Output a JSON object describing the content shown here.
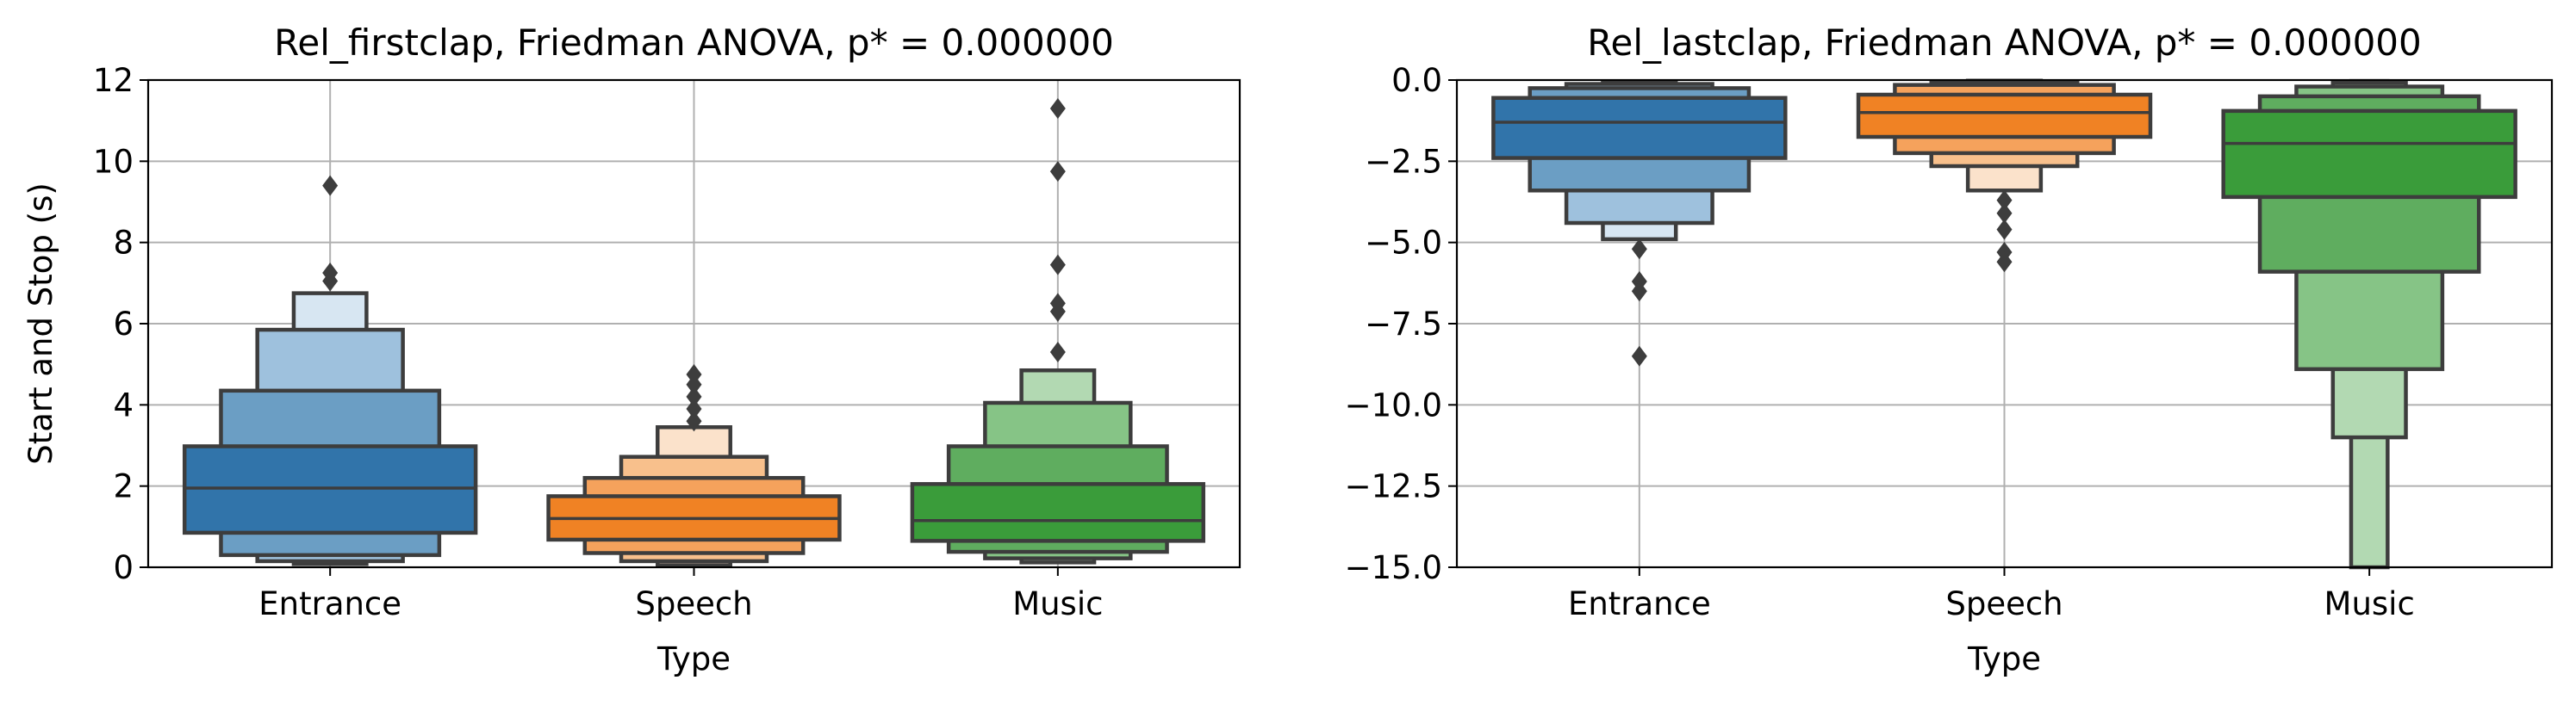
{
  "chart_data": [
    {
      "type": "boxen",
      "title": "Rel_firstclap, Friedman ANOVA, p* = 0.000000",
      "xlabel": "Type",
      "ylabel": "Start and Stop (s)",
      "ylim": [
        0,
        12
      ],
      "yticks": [
        "0",
        "2",
        "4",
        "6",
        "8",
        "10",
        "12"
      ],
      "ytick_values": [
        0,
        2,
        4,
        6,
        8,
        10,
        12
      ],
      "categories": [
        "Entrance",
        "Speech",
        "Music"
      ],
      "grid": true,
      "series": [
        {
          "category": "Entrance",
          "color": "#1f77b4",
          "median": 1.95,
          "boxes": [
            {
              "lo": 0.85,
              "hi": 2.98,
              "width": 0.8,
              "fill": "#3174aa"
            },
            {
              "lo": 0.3,
              "hi": 4.35,
              "width": 0.6,
              "fill": "#6b9ec4"
            },
            {
              "lo": 0.15,
              "hi": 5.85,
              "width": 0.4,
              "fill": "#9ec1dd"
            },
            {
              "lo": 0.08,
              "hi": 6.75,
              "width": 0.2,
              "fill": "#d7e6f2"
            }
          ],
          "outliers": [
            7.05,
            7.25,
            9.4
          ]
        },
        {
          "category": "Speech",
          "color": "#ff7f0e",
          "median": 1.2,
          "boxes": [
            {
              "lo": 0.68,
              "hi": 1.75,
              "width": 0.8,
              "fill": "#f08224"
            },
            {
              "lo": 0.35,
              "hi": 2.2,
              "width": 0.6,
              "fill": "#f5a25c"
            },
            {
              "lo": 0.15,
              "hi": 2.72,
              "width": 0.4,
              "fill": "#f8c08c"
            },
            {
              "lo": 0.05,
              "hi": 3.45,
              "width": 0.2,
              "fill": "#fbe2cb"
            }
          ],
          "outliers": [
            3.6,
            3.9,
            4.2,
            4.5,
            4.75
          ]
        },
        {
          "category": "Music",
          "color": "#2ca02c",
          "median": 1.15,
          "boxes": [
            {
              "lo": 0.65,
              "hi": 2.05,
              "width": 0.8,
              "fill": "#3a9c3a"
            },
            {
              "lo": 0.38,
              "hi": 2.98,
              "width": 0.6,
              "fill": "#5fad5f"
            },
            {
              "lo": 0.22,
              "hi": 4.05,
              "width": 0.4,
              "fill": "#86c486"
            },
            {
              "lo": 0.12,
              "hi": 4.85,
              "width": 0.2,
              "fill": "#b2d9b2"
            }
          ],
          "outliers": [
            5.3,
            6.3,
            6.5,
            7.45,
            9.75,
            11.3
          ]
        }
      ]
    },
    {
      "type": "boxen",
      "title": "Rel_lastclap, Friedman ANOVA, p* = 0.000000",
      "xlabel": "Type",
      "ylabel": "",
      "ylim": [
        -15,
        0
      ],
      "yticks": [
        "0.0",
        "−2.5",
        "−5.0",
        "−7.5",
        "−10.0",
        "−12.5",
        "−15.0"
      ],
      "ytick_values": [
        0,
        -2.5,
        -5,
        -7.5,
        -10,
        -12.5,
        -15
      ],
      "categories": [
        "Entrance",
        "Speech",
        "Music"
      ],
      "grid": true,
      "series": [
        {
          "category": "Entrance",
          "color": "#1f77b4",
          "median": -1.3,
          "boxes": [
            {
              "lo": -2.4,
              "hi": -0.55,
              "width": 0.8,
              "fill": "#3174aa"
            },
            {
              "lo": -3.4,
              "hi": -0.25,
              "width": 0.6,
              "fill": "#6b9ec4"
            },
            {
              "lo": -4.4,
              "hi": -0.12,
              "width": 0.4,
              "fill": "#9ec1dd"
            },
            {
              "lo": -4.9,
              "hi": -0.05,
              "width": 0.2,
              "fill": "#d7e6f2"
            }
          ],
          "outliers": [
            -5.2,
            -6.2,
            -6.5,
            -8.5
          ]
        },
        {
          "category": "Speech",
          "color": "#ff7f0e",
          "median": -1.0,
          "boxes": [
            {
              "lo": -1.75,
              "hi": -0.45,
              "width": 0.8,
              "fill": "#f08224"
            },
            {
              "lo": -2.25,
              "hi": -0.15,
              "width": 0.6,
              "fill": "#f5a25c"
            },
            {
              "lo": -2.65,
              "hi": -0.05,
              "width": 0.4,
              "fill": "#f8c08c"
            },
            {
              "lo": -3.4,
              "hi": -0.02,
              "width": 0.2,
              "fill": "#fbe2cb"
            }
          ],
          "outliers": [
            -3.7,
            -4.1,
            -4.6,
            -5.3,
            -5.6
          ]
        },
        {
          "category": "Music",
          "color": "#2ca02c",
          "median": -1.95,
          "boxes": [
            {
              "lo": -3.6,
              "hi": -0.95,
              "width": 0.8,
              "fill": "#3a9c3a"
            },
            {
              "lo": -5.9,
              "hi": -0.5,
              "width": 0.6,
              "fill": "#5fad5f"
            },
            {
              "lo": -8.9,
              "hi": -0.2,
              "width": 0.4,
              "fill": "#86c486"
            },
            {
              "lo": -11.0,
              "hi": -0.08,
              "width": 0.2,
              "fill": "#b2d9b2"
            },
            {
              "lo": -15.0,
              "hi": -0.03,
              "width": 0.1,
              "fill": "#b2d9b2"
            }
          ],
          "outliers": []
        }
      ]
    }
  ]
}
